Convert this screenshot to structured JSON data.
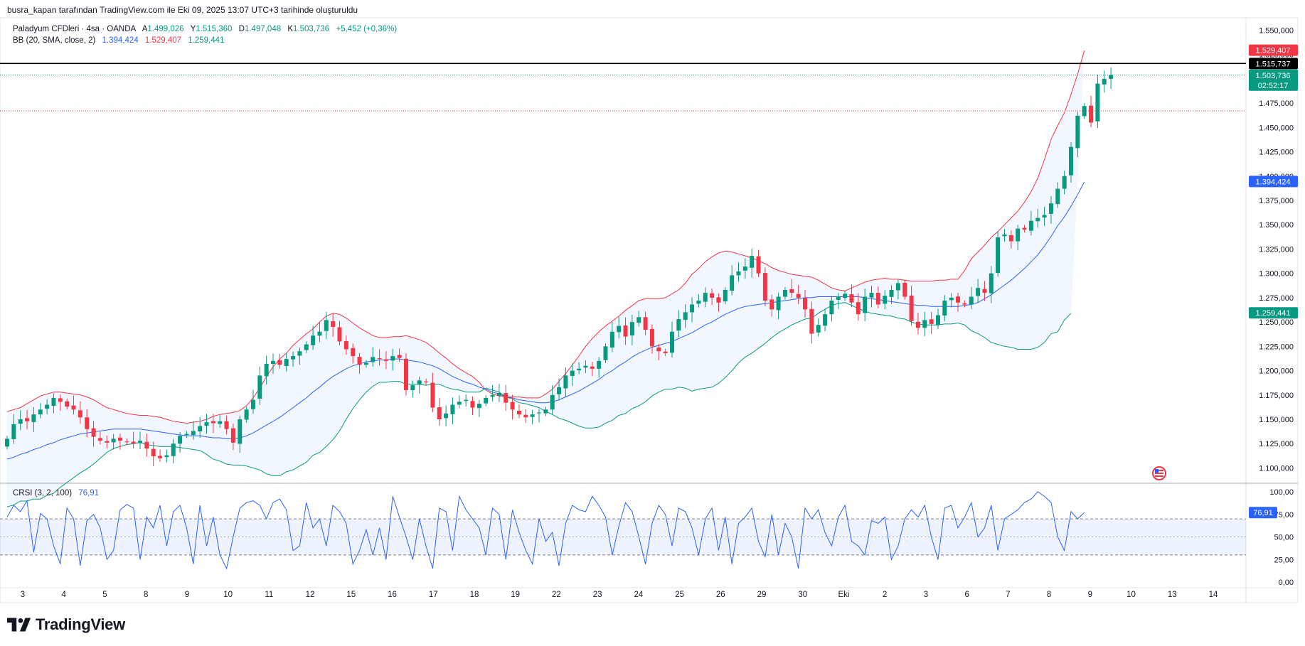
{
  "caption": "busra_kapan tarafından TradingView.com ile Eki 09, 2025 13:07 UTC+3 tarihinde oluşturuldu",
  "legend": {
    "symbol": "Paladyum CFDleri · 4sa · OANDA",
    "open_label": "A",
    "open": "1.499,026",
    "high_label": "Y",
    "high": "1.515,360",
    "low_label": "D",
    "low": "1.497,048",
    "close_label": "K",
    "close": "1.503,736",
    "change": "+5,452 (+0,36%)",
    "bb_label": "BB (20, SMA, close, 2)",
    "bb_basis": "1.394,424",
    "bb_upper": "1.529,407",
    "bb_lower": "1.259,441",
    "crsi_label": "CRSI (3, 2, 100)",
    "crsi_value": "76,91"
  },
  "badges": {
    "upper": "1.529,407",
    "hline": "1.515,737",
    "last_price": "1.503,736",
    "countdown": "02:52:17",
    "basis": "1.394,424",
    "lower": "1.259,441",
    "crsi": "76,91"
  },
  "brand": "TradingView",
  "colors": {
    "up": "#089981",
    "down": "#f23645",
    "basis": "#2962ff",
    "upper": "#f23645",
    "lower": "#089981",
    "band_fill": "#2962ff",
    "crsi": "#2962ff",
    "hline": "#000000"
  },
  "chart_data": [
    {
      "type": "candlestick",
      "title": "Paladyum CFDleri · 4sa · OANDA",
      "ylim": [
        1085000,
        1562000
      ],
      "y_ticks": [
        "1.550,000",
        "1.525,000",
        "1.475,000",
        "1.450,000",
        "1.425,000",
        "1.400,000",
        "1.375,000",
        "1.350,000",
        "1.325,000",
        "1.300,000",
        "1.275,000",
        "1.250,000",
        "1.225,000",
        "1.200,000",
        "1.175,000",
        "1.150,000",
        "1.125,000",
        "1.100,000"
      ],
      "y_tick_values": [
        1550000,
        1525000,
        1475000,
        1450000,
        1425000,
        1400000,
        1375000,
        1350000,
        1325000,
        1300000,
        1275000,
        1250000,
        1225000,
        1200000,
        1175000,
        1150000,
        1125000,
        1100000
      ],
      "x_ticks": [
        "3",
        "4",
        "5",
        "8",
        "9",
        "10",
        "11",
        "12",
        "15",
        "16",
        "17",
        "18",
        "19",
        "22",
        "23",
        "24",
        "25",
        "26",
        "29",
        "30",
        "Eki",
        "2",
        "3",
        "6",
        "7",
        "8",
        "9",
        "10",
        "13",
        "14"
      ],
      "closes": [
        1130000,
        1145000,
        1150000,
        1148000,
        1155000,
        1160000,
        1165000,
        1172000,
        1168000,
        1163000,
        1160000,
        1152000,
        1140000,
        1132000,
        1128000,
        1126000,
        1130000,
        1128000,
        1127000,
        1125000,
        1128000,
        1120000,
        1112000,
        1110000,
        1113000,
        1125000,
        1133000,
        1135000,
        1138000,
        1143000,
        1147000,
        1146000,
        1148000,
        1140000,
        1126000,
        1150000,
        1160000,
        1170000,
        1195000,
        1207000,
        1210000,
        1206000,
        1212000,
        1215000,
        1220000,
        1227000,
        1236000,
        1240000,
        1252000,
        1245000,
        1230000,
        1222000,
        1215000,
        1206000,
        1208000,
        1214000,
        1212000,
        1210000,
        1215000,
        1213000,
        1180000,
        1185000,
        1190000,
        1188000,
        1162000,
        1150000,
        1156000,
        1165000,
        1168000,
        1170000,
        1162000,
        1166000,
        1172000,
        1175000,
        1177000,
        1167000,
        1160000,
        1155000,
        1152000,
        1155000,
        1157000,
        1160000,
        1175000,
        1183000,
        1195000,
        1200000,
        1202000,
        1205000,
        1202000,
        1210000,
        1225000,
        1240000,
        1246000,
        1235000,
        1250000,
        1255000,
        1242000,
        1225000,
        1220000,
        1218000,
        1240000,
        1253000,
        1260000,
        1268000,
        1272000,
        1280000,
        1275000,
        1270000,
        1283000,
        1298000,
        1302000,
        1307000,
        1318000,
        1300000,
        1272000,
        1263000,
        1276000,
        1283000,
        1280000,
        1275000,
        1263000,
        1238000,
        1247000,
        1258000,
        1272000,
        1276000,
        1279000,
        1270000,
        1258000,
        1276000,
        1280000,
        1268000,
        1277000,
        1283000,
        1290000,
        1276000,
        1251000,
        1244000,
        1252000,
        1248000,
        1257000,
        1272000,
        1275000,
        1270000,
        1268000,
        1276000,
        1285000,
        1280000,
        1300000,
        1337000,
        1340000,
        1333000,
        1346000,
        1345000,
        1354000,
        1357000,
        1360000,
        1372000,
        1387000,
        1400000,
        1430000,
        1462000,
        1472000,
        1455000,
        1495000,
        1500000,
        1504000
      ],
      "bb_upper": [
        1158000,
        1160000,
        1162000,
        1166000,
        1170000,
        1174000,
        1176000,
        1178000,
        1178000,
        1177000,
        1176000,
        1175000,
        1173000,
        1170000,
        1166000,
        1162000,
        1160000,
        1158000,
        1156000,
        1155000,
        1154000,
        1154000,
        1153000,
        1152000,
        1150000,
        1148000,
        1147000,
        1146000,
        1147000,
        1148000,
        1150000,
        1153000,
        1155000,
        1156000,
        1157000,
        1159000,
        1164000,
        1172000,
        1182000,
        1194000,
        1204000,
        1212000,
        1218000,
        1226000,
        1232000,
        1238000,
        1243000,
        1250000,
        1256000,
        1259000,
        1258000,
        1254000,
        1249000,
        1244000,
        1240000,
        1236000,
        1234000,
        1234000,
        1235000,
        1235000,
        1236000,
        1234000,
        1232000,
        1229000,
        1224000,
        1218000,
        1213000,
        1207000,
        1202000,
        1198000,
        1194000,
        1188000,
        1180000,
        1176000,
        1174000,
        1173000,
        1173000,
        1173000,
        1172000,
        1172000,
        1172000,
        1176000,
        1181000,
        1189000,
        1197000,
        1206000,
        1215000,
        1225000,
        1233000,
        1240000,
        1246000,
        1251000,
        1256000,
        1262000,
        1267000,
        1272000,
        1274000,
        1274000,
        1274000,
        1275000,
        1279000,
        1283000,
        1290000,
        1299000,
        1305000,
        1312000,
        1317000,
        1321000,
        1323000,
        1322000,
        1320000,
        1318000,
        1316000,
        1313000,
        1310000,
        1306000,
        1303000,
        1301000,
        1299000,
        1298000,
        1297000,
        1296000,
        1293000,
        1289000,
        1285000,
        1283000,
        1282000,
        1285000,
        1288000,
        1291000,
        1293000,
        1294000,
        1295000,
        1294000,
        1294000,
        1293000,
        1292000,
        1292000,
        1292000,
        1292000,
        1293000,
        1293000,
        1294000,
        1294000,
        1303000,
        1315000,
        1322000,
        1329000,
        1337000,
        1343000,
        1350000,
        1357000,
        1364000,
        1373000,
        1384000,
        1398000,
        1417000,
        1438000,
        1452000,
        1465000,
        1484000,
        1505000,
        1529000
      ],
      "bb_basis": [
        1109000,
        1111000,
        1114000,
        1116000,
        1119000,
        1121000,
        1124000,
        1126000,
        1129000,
        1131000,
        1133000,
        1135000,
        1136000,
        1137000,
        1138000,
        1139000,
        1140000,
        1140000,
        1140000,
        1140000,
        1140000,
        1139000,
        1138000,
        1137000,
        1136000,
        1135000,
        1134000,
        1133000,
        1133000,
        1133000,
        1132000,
        1131000,
        1131000,
        1130000,
        1130000,
        1131000,
        1133000,
        1136000,
        1140000,
        1144000,
        1148000,
        1152000,
        1157000,
        1162000,
        1167000,
        1172000,
        1178000,
        1183000,
        1189000,
        1194000,
        1198000,
        1202000,
        1205000,
        1207000,
        1209000,
        1210000,
        1211000,
        1211000,
        1212000,
        1212000,
        1211000,
        1210000,
        1209000,
        1207000,
        1205000,
        1202000,
        1198000,
        1194000,
        1191000,
        1188000,
        1186000,
        1183000,
        1181000,
        1178000,
        1176000,
        1173000,
        1172000,
        1170000,
        1169000,
        1168000,
        1167000,
        1167000,
        1168000,
        1170000,
        1173000,
        1176000,
        1179000,
        1183000,
        1187000,
        1191000,
        1196000,
        1200000,
        1205000,
        1209000,
        1214000,
        1218000,
        1221000,
        1224000,
        1226000,
        1228000,
        1230000,
        1233000,
        1236000,
        1239000,
        1243000,
        1247000,
        1250000,
        1254000,
        1258000,
        1261000,
        1264000,
        1266000,
        1267000,
        1268000,
        1269000,
        1270000,
        1271000,
        1272000,
        1273000,
        1274000,
        1275000,
        1275000,
        1276000,
        1276000,
        1276000,
        1276000,
        1276000,
        1276000,
        1276000,
        1275000,
        1274000,
        1273000,
        1272000,
        1271000,
        1270000,
        1269000,
        1268000,
        1267000,
        1267000,
        1266000,
        1266000,
        1266000,
        1266000,
        1266000,
        1267000,
        1268000,
        1270000,
        1274000,
        1278000,
        1283000,
        1288000,
        1293000,
        1299000,
        1305000,
        1312000,
        1319000,
        1328000,
        1338000,
        1349000,
        1358000,
        1369000,
        1381000,
        1394000
      ],
      "bb_lower": [
        1060000,
        1062000,
        1066000,
        1066000,
        1068000,
        1068000,
        1072000,
        1074000,
        1080000,
        1085000,
        1090000,
        1095000,
        1099000,
        1104000,
        1110000,
        1116000,
        1120000,
        1122000,
        1124000,
        1125000,
        1126000,
        1124000,
        1123000,
        1122000,
        1122000,
        1122000,
        1121000,
        1120000,
        1119000,
        1118000,
        1114000,
        1109000,
        1107000,
        1104000,
        1103000,
        1103000,
        1102000,
        1100000,
        1098000,
        1094000,
        1092000,
        1092000,
        1096000,
        1098000,
        1102000,
        1106000,
        1113000,
        1116000,
        1122000,
        1129000,
        1138000,
        1150000,
        1161000,
        1170000,
        1178000,
        1184000,
        1188000,
        1188000,
        1189000,
        1189000,
        1186000,
        1186000,
        1186000,
        1185000,
        1186000,
        1186000,
        1183000,
        1181000,
        1180000,
        1178000,
        1178000,
        1178000,
        1182000,
        1180000,
        1178000,
        1173000,
        1171000,
        1167000,
        1166000,
        1164000,
        1162000,
        1158000,
        1155000,
        1151000,
        1149000,
        1146000,
        1143000,
        1141000,
        1141000,
        1142000,
        1146000,
        1149000,
        1154000,
        1156000,
        1161000,
        1164000,
        1168000,
        1174000,
        1178000,
        1181000,
        1181000,
        1183000,
        1182000,
        1179000,
        1181000,
        1182000,
        1183000,
        1187000,
        1193000,
        1200000,
        1208000,
        1214000,
        1218000,
        1223000,
        1228000,
        1234000,
        1239000,
        1243000,
        1247000,
        1250000,
        1253000,
        1254000,
        1259000,
        1263000,
        1267000,
        1269000,
        1270000,
        1267000,
        1264000,
        1261000,
        1259000,
        1258000,
        1257000,
        1256000,
        1254000,
        1253000,
        1250000,
        1248000,
        1247000,
        1247000,
        1247000,
        1248000,
        1248000,
        1249000,
        1247000,
        1241000,
        1238000,
        1234000,
        1229000,
        1227000,
        1225000,
        1224000,
        1222000,
        1222000,
        1222000,
        1224000,
        1229000,
        1238000,
        1240000,
        1252000,
        1259000
      ]
    },
    {
      "type": "line",
      "title": "CRSI (3, 2, 100)",
      "ylim": [
        0,
        100
      ],
      "y_ticks": [
        "100,00",
        "75,00",
        "50,00",
        "25,00",
        "0,00"
      ],
      "y_tick_values": [
        100,
        75,
        50,
        25,
        0
      ],
      "overbought": 70,
      "oversold": 30,
      "midline": 50,
      "series": [
        {
          "values": [
            72,
            85,
            78,
            90,
            33,
            76,
            70,
            40,
            20,
            82,
            70,
            18,
            68,
            75,
            60,
            25,
            35,
            80,
            86,
            82,
            25,
            72,
            60,
            85,
            40,
            78,
            85,
            60,
            20,
            85,
            40,
            72,
            30,
            15,
            50,
            82,
            88,
            90,
            85,
            70,
            88,
            92,
            80,
            35,
            40,
            88,
            60,
            70,
            40,
            85,
            78,
            65,
            20,
            35,
            58,
            30,
            60,
            25,
            95,
            72,
            50,
            25,
            70,
            40,
            15,
            82,
            78,
            35,
            95,
            80,
            70,
            60,
            30,
            82,
            75,
            25,
            80,
            55,
            35,
            20,
            70,
            45,
            55,
            18,
            65,
            85,
            80,
            78,
            95,
            85,
            72,
            30,
            62,
            88,
            78,
            50,
            20,
            65,
            85,
            75,
            40,
            82,
            78,
            60,
            30,
            70,
            82,
            35,
            72,
            20,
            65,
            72,
            82,
            45,
            28,
            75,
            30,
            65,
            50,
            15,
            82,
            70,
            80,
            55,
            40,
            72,
            85,
            45,
            40,
            30,
            68,
            65,
            72,
            25,
            40,
            70,
            80,
            72,
            85,
            50,
            25,
            82,
            85,
            60,
            72,
            88,
            50,
            60,
            85,
            35,
            70,
            75,
            80,
            88,
            92,
            100,
            95,
            88,
            50,
            35,
            78,
            70,
            77
          ]
        }
      ]
    }
  ]
}
